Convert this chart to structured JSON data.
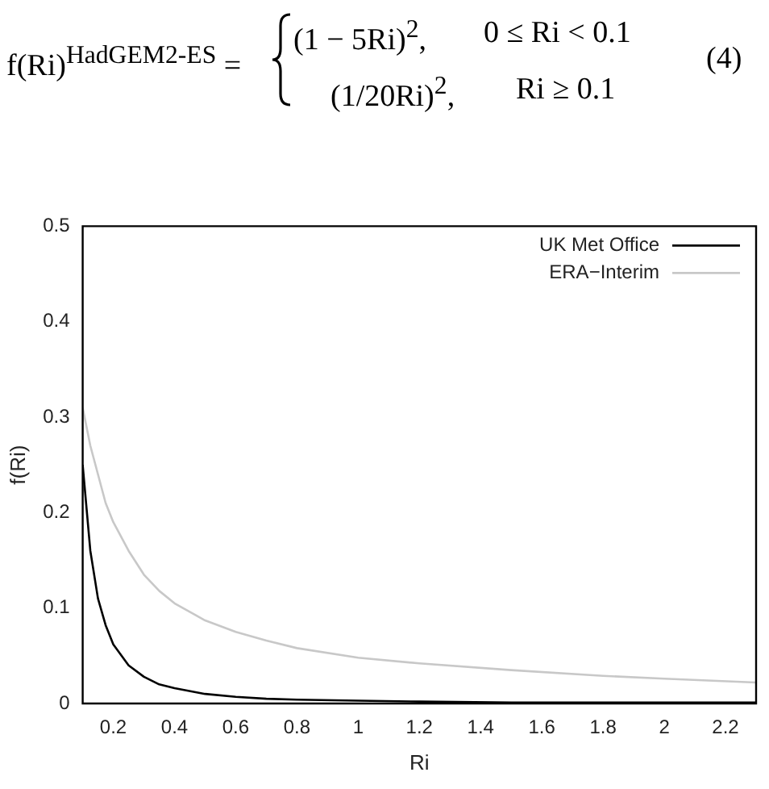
{
  "chart_data": {
    "type": "line",
    "xlabel": "Ri",
    "ylabel": "f(Ri)",
    "annotations": [
      "f(Ri)$^{HadGEM2-ES}$ =",
      "(1 − 5Ri)$^{2}$,",
      "0 ≤ Ri < 0.1",
      "(1/20Ri)$^{2}$,",
      "Ri ≥ 0.1",
      "(4)"
    ],
    "x": [
      0.1,
      0.125,
      0.15,
      0.175,
      0.2,
      0.25,
      0.3,
      0.35,
      0.4,
      0.5,
      0.6,
      0.7,
      0.8,
      1.0,
      1.2,
      1.5,
      1.8,
      2.0,
      2.3
    ],
    "series": [
      {
        "name": "UK Met Office",
        "color": "#000000",
        "values": [
          0.25,
          0.16,
          0.11,
          0.082,
          0.062,
          0.04,
          0.028,
          0.02,
          0.016,
          0.01,
          0.007,
          0.005,
          0.004,
          0.003,
          0.002,
          0.001,
          0.001,
          0.001,
          0.001
        ]
      },
      {
        "name": "ERA−Interim",
        "color": "#c8c8c8",
        "values": [
          0.31,
          0.27,
          0.24,
          0.21,
          0.19,
          0.16,
          0.135,
          0.118,
          0.105,
          0.087,
          0.075,
          0.066,
          0.058,
          0.048,
          0.042,
          0.035,
          0.029,
          0.026,
          0.022
        ]
      }
    ],
    "xlim": [
      0.1,
      2.3
    ],
    "xticks": [
      0.2,
      0.4,
      0.6,
      0.8,
      1,
      1.2,
      1.4,
      1.6,
      1.8,
      2,
      2.2
    ],
    "ylim": [
      0,
      0.5
    ],
    "yticks": [
      0,
      0.1,
      0.2,
      0.3,
      0.4,
      0.5
    ],
    "grid": false,
    "legend": "top right",
    "marker": "none",
    "line_style": "solid"
  }
}
